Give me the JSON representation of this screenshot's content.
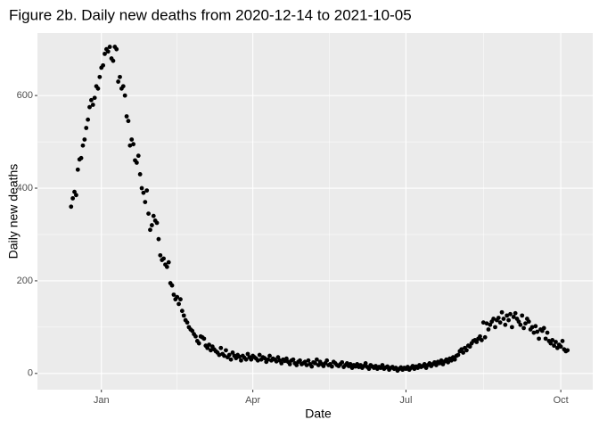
{
  "chart_data": {
    "type": "scatter",
    "title": "Figure 2b. Daily new deaths from 2020-12-14 to 2021-10-05",
    "x_label": "Date",
    "y_label": "Daily new deaths",
    "color": "#000000",
    "grid": true,
    "xlim": [
      "2020-11-24",
      "2021-10-20"
    ],
    "ylim": [
      -35,
      735
    ],
    "xticks": [
      {
        "value": "2021-01-01",
        "label": "Jan"
      },
      {
        "value": "2021-04-01",
        "label": "Apr"
      },
      {
        "value": "2021-07-01",
        "label": "Jul"
      },
      {
        "value": "2021-10-01",
        "label": "Oct"
      }
    ],
    "yticks": [
      0,
      200,
      400,
      600
    ],
    "x": [
      "2020-12-14",
      "2020-12-15",
      "2020-12-16",
      "2020-12-17",
      "2020-12-18",
      "2020-12-19",
      "2020-12-20",
      "2020-12-21",
      "2020-12-22",
      "2020-12-23",
      "2020-12-24",
      "2020-12-25",
      "2020-12-26",
      "2020-12-27",
      "2020-12-28",
      "2020-12-29",
      "2020-12-30",
      "2020-12-31",
      "2021-01-01",
      "2021-01-02",
      "2021-01-03",
      "2021-01-04",
      "2021-01-05",
      "2021-01-06",
      "2021-01-07",
      "2021-01-08",
      "2021-01-09",
      "2021-01-10",
      "2021-01-11",
      "2021-01-12",
      "2021-01-13",
      "2021-01-14",
      "2021-01-15",
      "2021-01-16",
      "2021-01-17",
      "2021-01-18",
      "2021-01-19",
      "2021-01-20",
      "2021-01-21",
      "2021-01-22",
      "2021-01-23",
      "2021-01-24",
      "2021-01-25",
      "2021-01-26",
      "2021-01-27",
      "2021-01-28",
      "2021-01-29",
      "2021-01-30",
      "2021-01-31",
      "2021-02-01",
      "2021-02-02",
      "2021-02-03",
      "2021-02-04",
      "2021-02-05",
      "2021-02-06",
      "2021-02-07",
      "2021-02-08",
      "2021-02-09",
      "2021-02-10",
      "2021-02-11",
      "2021-02-12",
      "2021-02-13",
      "2021-02-14",
      "2021-02-15",
      "2021-02-16",
      "2021-02-17",
      "2021-02-18",
      "2021-02-19",
      "2021-02-20",
      "2021-02-21",
      "2021-02-22",
      "2021-02-23",
      "2021-02-24",
      "2021-02-25",
      "2021-02-26",
      "2021-02-27",
      "2021-02-28",
      "2021-03-01",
      "2021-03-02",
      "2021-03-03",
      "2021-03-04",
      "2021-03-05",
      "2021-03-06",
      "2021-03-07",
      "2021-03-08",
      "2021-03-09",
      "2021-03-10",
      "2021-03-11",
      "2021-03-12",
      "2021-03-13",
      "2021-03-14",
      "2021-03-15",
      "2021-03-16",
      "2021-03-17",
      "2021-03-18",
      "2021-03-19",
      "2021-03-20",
      "2021-03-21",
      "2021-03-22",
      "2021-03-23",
      "2021-03-24",
      "2021-03-25",
      "2021-03-26",
      "2021-03-27",
      "2021-03-28",
      "2021-03-29",
      "2021-03-30",
      "2021-03-31",
      "2021-04-01",
      "2021-04-02",
      "2021-04-03",
      "2021-04-04",
      "2021-04-05",
      "2021-04-06",
      "2021-04-07",
      "2021-04-08",
      "2021-04-09",
      "2021-04-10",
      "2021-04-11",
      "2021-04-12",
      "2021-04-13",
      "2021-04-14",
      "2021-04-15",
      "2021-04-16",
      "2021-04-17",
      "2021-04-18",
      "2021-04-19",
      "2021-04-20",
      "2021-04-21",
      "2021-04-22",
      "2021-04-23",
      "2021-04-24",
      "2021-04-25",
      "2021-04-26",
      "2021-04-27",
      "2021-04-28",
      "2021-04-29",
      "2021-04-30",
      "2021-05-01",
      "2021-05-02",
      "2021-05-03",
      "2021-05-04",
      "2021-05-05",
      "2021-05-06",
      "2021-05-07",
      "2021-05-08",
      "2021-05-09",
      "2021-05-10",
      "2021-05-11",
      "2021-05-12",
      "2021-05-13",
      "2021-05-14",
      "2021-05-15",
      "2021-05-16",
      "2021-05-17",
      "2021-05-18",
      "2021-05-19",
      "2021-05-20",
      "2021-05-21",
      "2021-05-22",
      "2021-05-23",
      "2021-05-24",
      "2021-05-25",
      "2021-05-26",
      "2021-05-27",
      "2021-05-28",
      "2021-05-29",
      "2021-05-30",
      "2021-05-31",
      "2021-06-01",
      "2021-06-02",
      "2021-06-03",
      "2021-06-04",
      "2021-06-05",
      "2021-06-06",
      "2021-06-07",
      "2021-06-08",
      "2021-06-09",
      "2021-06-10",
      "2021-06-11",
      "2021-06-12",
      "2021-06-13",
      "2021-06-14",
      "2021-06-15",
      "2021-06-16",
      "2021-06-17",
      "2021-06-18",
      "2021-06-19",
      "2021-06-20",
      "2021-06-21",
      "2021-06-22",
      "2021-06-23",
      "2021-06-24",
      "2021-06-25",
      "2021-06-26",
      "2021-06-27",
      "2021-06-28",
      "2021-06-29",
      "2021-06-30",
      "2021-07-01",
      "2021-07-02",
      "2021-07-03",
      "2021-07-04",
      "2021-07-05",
      "2021-07-06",
      "2021-07-07",
      "2021-07-08",
      "2021-07-09",
      "2021-07-10",
      "2021-07-11",
      "2021-07-12",
      "2021-07-13",
      "2021-07-14",
      "2021-07-15",
      "2021-07-16",
      "2021-07-17",
      "2021-07-18",
      "2021-07-19",
      "2021-07-20",
      "2021-07-21",
      "2021-07-22",
      "2021-07-23",
      "2021-07-24",
      "2021-07-25",
      "2021-07-26",
      "2021-07-27",
      "2021-07-28",
      "2021-07-29",
      "2021-07-30",
      "2021-07-31",
      "2021-08-01",
      "2021-08-02",
      "2021-08-03",
      "2021-08-04",
      "2021-08-05",
      "2021-08-06",
      "2021-08-07",
      "2021-08-08",
      "2021-08-09",
      "2021-08-10",
      "2021-08-11",
      "2021-08-12",
      "2021-08-13",
      "2021-08-14",
      "2021-08-15",
      "2021-08-16",
      "2021-08-17",
      "2021-08-18",
      "2021-08-19",
      "2021-08-20",
      "2021-08-21",
      "2021-08-22",
      "2021-08-23",
      "2021-08-24",
      "2021-08-25",
      "2021-08-26",
      "2021-08-27",
      "2021-08-28",
      "2021-08-29",
      "2021-08-30",
      "2021-08-31",
      "2021-09-01",
      "2021-09-02",
      "2021-09-03",
      "2021-09-04",
      "2021-09-05",
      "2021-09-06",
      "2021-09-07",
      "2021-09-08",
      "2021-09-09",
      "2021-09-10",
      "2021-09-11",
      "2021-09-12",
      "2021-09-13",
      "2021-09-14",
      "2021-09-15",
      "2021-09-16",
      "2021-09-17",
      "2021-09-18",
      "2021-09-19",
      "2021-09-20",
      "2021-09-21",
      "2021-09-22",
      "2021-09-23",
      "2021-09-24",
      "2021-09-25",
      "2021-09-26",
      "2021-09-27",
      "2021-09-28",
      "2021-09-29",
      "2021-09-30",
      "2021-10-01",
      "2021-10-02",
      "2021-10-03",
      "2021-10-04",
      "2021-10-05"
    ],
    "values": [
      360,
      378,
      392,
      385,
      440,
      462,
      465,
      492,
      505,
      530,
      548,
      575,
      590,
      580,
      595,
      620,
      615,
      640,
      660,
      665,
      690,
      700,
      695,
      705,
      680,
      675,
      705,
      700,
      630,
      640,
      615,
      620,
      600,
      555,
      545,
      492,
      505,
      495,
      460,
      455,
      470,
      430,
      400,
      390,
      370,
      395,
      345,
      310,
      320,
      340,
      330,
      325,
      290,
      255,
      245,
      248,
      235,
      230,
      240,
      195,
      190,
      170,
      160,
      165,
      150,
      160,
      135,
      125,
      115,
      110,
      100,
      95,
      92,
      85,
      80,
      70,
      65,
      80,
      78,
      75,
      60,
      55,
      62,
      50,
      58,
      52,
      48,
      45,
      40,
      55,
      42,
      38,
      50,
      35,
      40,
      30,
      45,
      38,
      33,
      40,
      36,
      28,
      38,
      34,
      30,
      42,
      35,
      30,
      38,
      35,
      32,
      28,
      40,
      30,
      35,
      33,
      25,
      30,
      38,
      28,
      32,
      30,
      26,
      35,
      28,
      22,
      30,
      27,
      32,
      25,
      20,
      28,
      30,
      22,
      18,
      25,
      28,
      20,
      22,
      25,
      18,
      28,
      20,
      15,
      24,
      22,
      30,
      18,
      25,
      20,
      16,
      22,
      28,
      18,
      20,
      15,
      25,
      22,
      18,
      16,
      20,
      24,
      14,
      18,
      22,
      16,
      20,
      12,
      18,
      15,
      20,
      14,
      18,
      12,
      16,
      22,
      14,
      10,
      18,
      15,
      12,
      16,
      10,
      14,
      12,
      18,
      10,
      13,
      15,
      8,
      12,
      14,
      10,
      12,
      6,
      10,
      13,
      8,
      12,
      10,
      14,
      8,
      12,
      16,
      10,
      15,
      12,
      18,
      14,
      16,
      20,
      12,
      18,
      22,
      16,
      20,
      24,
      18,
      25,
      22,
      28,
      20,
      26,
      30,
      24,
      32,
      28,
      35,
      30,
      38,
      40,
      48,
      52,
      45,
      55,
      50,
      60,
      58,
      65,
      70,
      72,
      68,
      75,
      80,
      72,
      110,
      78,
      108,
      95,
      105,
      112,
      118,
      100,
      115,
      120,
      110,
      132,
      118,
      105,
      125,
      115,
      128,
      100,
      122,
      130,
      118,
      112,
      105,
      125,
      98,
      108,
      118,
      112,
      95,
      100,
      88,
      102,
      90,
      75,
      95,
      92,
      98,
      75,
      88,
      70,
      65,
      72,
      60,
      68,
      55,
      62,
      58,
      70,
      52,
      48,
      50
    ]
  }
}
